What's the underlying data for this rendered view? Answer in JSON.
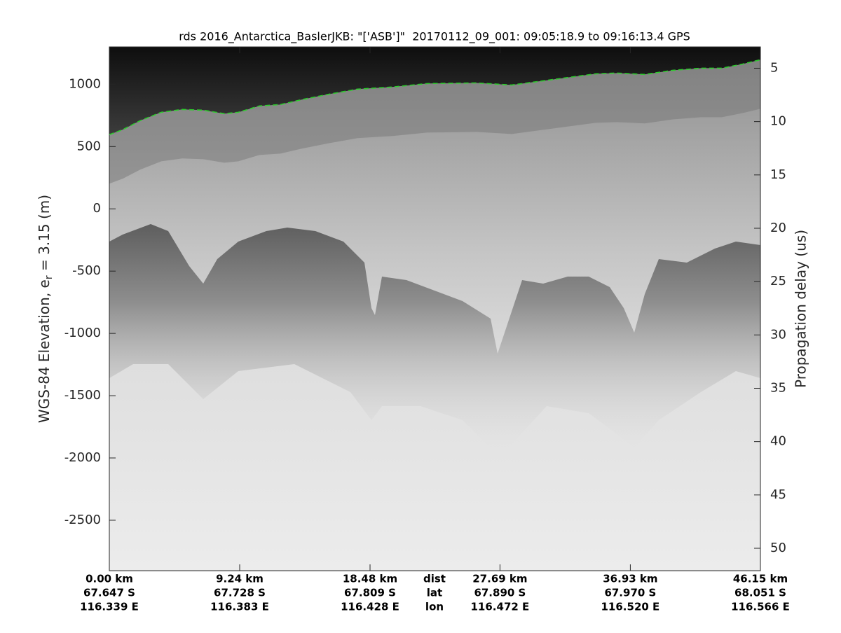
{
  "chart_data": {
    "type": "line",
    "title": "rds 2016_Antarctica_BaslerJKB: \"['ASB']\"  20170112_09_001: 09:05:18.9 to 09:16:13.4 GPS",
    "ylabel": [
      "WGS-84 Elevation, e",
      "r",
      " = 3.15 (m)"
    ],
    "y2label": "Propagation delay (us)",
    "x_row_labels": [
      "dist",
      "lat",
      "lon"
    ],
    "xlim": [
      0,
      46.15
    ],
    "xticks": [
      {
        "value": 0,
        "label": "0.00 km"
      },
      {
        "value": 9.24,
        "label": "9.24 km"
      },
      {
        "value": 18.48,
        "label": "18.48 km"
      },
      {
        "value": 27.69,
        "label": "27.69 km"
      },
      {
        "value": 36.93,
        "label": "36.93 km"
      },
      {
        "value": 46.15,
        "label": "46.15 km"
      }
    ],
    "lat_labels": [
      "67.647 S",
      "67.728 S",
      "67.809 S",
      "67.890 S",
      "67.970 S",
      "68.051 S"
    ],
    "lon_labels": [
      "116.339 E",
      "116.383 E",
      "116.428 E",
      "116.472 E",
      "116.520 E",
      "116.566 E"
    ],
    "ylim": [
      -2905,
      1300
    ],
    "yticks": [
      -2500,
      -2000,
      -1500,
      -1000,
      -500,
      0,
      500,
      1000
    ],
    "y2lim": [
      3.0,
      52.1
    ],
    "y2_inverted": true,
    "y2ticks": [
      5,
      10,
      15,
      20,
      25,
      30,
      35,
      40,
      45,
      50
    ],
    "grid": false,
    "x": [
      0,
      0.94,
      2.19,
      3.68,
      5.17,
      6.66,
      8.15,
      9.14,
      10.63,
      12.12,
      13.61,
      15.6,
      17.59,
      20.07,
      22.56,
      26.03,
      28.52,
      31.5,
      34.48,
      35.97,
      37.95,
      39.94,
      41.93,
      43.42,
      44.91,
      46.15
    ],
    "series": [
      {
        "color": "#2ecc2e",
        "values": [
          596,
          635,
          708,
          775,
          798,
          792,
          764,
          775,
          826,
          837,
          876,
          921,
          961,
          978,
          1006,
          1011,
          994,
          1039,
          1084,
          1090,
          1079,
          1112,
          1129,
          1129,
          1163,
          1197
        ]
      }
    ]
  }
}
